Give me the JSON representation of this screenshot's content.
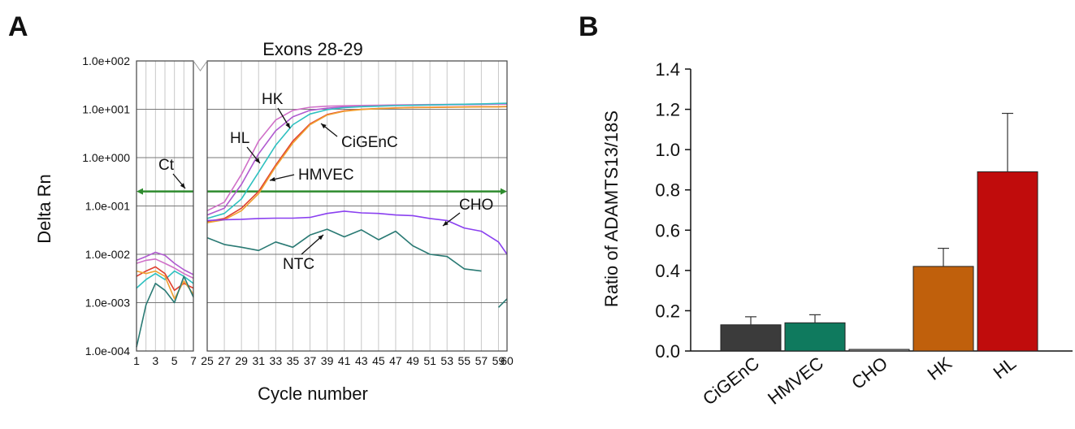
{
  "panel_a_letter": "A",
  "panel_b_letter": "B",
  "colors": {
    "HK": "#b05ad0",
    "HL": "#d070c8",
    "HMVEC": "#2ec0c0",
    "CiGEnC": "#e04030",
    "CiGEnC_b": "#f0a030",
    "CHO": "#8a40f0",
    "NTC": "#2a7a74",
    "threshold": "#2e8b2e",
    "bar_CiGEnC": "#3b3b3b",
    "bar_HMVEC": "#0f7a5e",
    "bar_CHO": "#9a9a9a",
    "bar_HK": "#c0600c",
    "bar_HL": "#c00c0c"
  },
  "chart_data": [
    {
      "type": "line",
      "title": "Exons 28-29",
      "xlabel": "Cycle number",
      "ylabel": "Delta Rn",
      "yscale": "log",
      "ylim": [
        0.0001,
        100
      ],
      "y_ticks": [
        "1.0e+002",
        "1.0e+001",
        "1.0e+000",
        "1.0e-001",
        "1.0e-002",
        "1.0e-003",
        "1.0e-004"
      ],
      "x_ticks_left": [
        "1",
        "3",
        "5",
        "7"
      ],
      "x_ticks_right": [
        "25",
        "27",
        "29",
        "31",
        "33",
        "35",
        "37",
        "39",
        "41",
        "43",
        "45",
        "47",
        "49",
        "51",
        "53",
        "55",
        "57",
        "59",
        "60"
      ],
      "axis_break": [
        7,
        25
      ],
      "grid": true,
      "threshold": {
        "label": "Ct",
        "value": 0.2
      },
      "annotations": [
        "HK",
        "HL",
        "CiGEnC",
        "HMVEC",
        "CHO",
        "NTC",
        "Ct"
      ],
      "series": [
        {
          "name": "HK",
          "color_key": "HK",
          "x": [
            1,
            2,
            3,
            4,
            5,
            6,
            7,
            25,
            27,
            29,
            31,
            33,
            35,
            37,
            39,
            41,
            43,
            45,
            47,
            49,
            51,
            53,
            55,
            57,
            59,
            60
          ],
          "y": [
            0.0075,
            0.009,
            0.011,
            0.0095,
            0.0065,
            0.0048,
            0.0038,
            0.065,
            0.09,
            0.28,
            1.2,
            3.6,
            7.0,
            9.5,
            10.5,
            11.2,
            11.5,
            11.8,
            12.0,
            12.2,
            12.3,
            12.4,
            12.5,
            12.6,
            12.8,
            12.8
          ]
        },
        {
          "name": "HL",
          "color_key": "HL",
          "x": [
            1,
            2,
            3,
            4,
            5,
            6,
            7,
            25,
            27,
            29,
            31,
            33,
            35,
            37,
            39,
            41,
            43,
            45,
            47,
            49,
            51,
            53,
            55,
            57,
            59,
            60
          ],
          "y": [
            0.0065,
            0.0075,
            0.008,
            0.0065,
            0.0052,
            0.004,
            0.0032,
            0.08,
            0.12,
            0.45,
            2.2,
            6.0,
            9.5,
            11.0,
            11.6,
            11.8,
            12.0,
            12.1,
            12.3,
            12.4,
            12.5,
            12.6,
            12.7,
            12.8,
            13.0,
            13.0
          ]
        },
        {
          "name": "HMVEC",
          "color_key": "HMVEC",
          "x": [
            1,
            2,
            3,
            4,
            5,
            6,
            7,
            25,
            27,
            29,
            31,
            33,
            35,
            37,
            39,
            41,
            43,
            45,
            47,
            49,
            51,
            53,
            55,
            57,
            59,
            60
          ],
          "y": [
            0.002,
            0.003,
            0.004,
            0.003,
            0.0045,
            0.0035,
            0.0025,
            0.055,
            0.07,
            0.14,
            0.5,
            1.8,
            4.8,
            8.0,
            9.8,
            10.8,
            11.3,
            11.6,
            11.9,
            12.1,
            12.3,
            12.5,
            12.7,
            12.9,
            13.2,
            13.3
          ]
        },
        {
          "name": "CiGEnC",
          "color_key": "CiGEnC",
          "x": [
            1,
            2,
            3,
            4,
            5,
            6,
            7,
            25,
            27,
            29,
            31,
            33,
            35,
            37,
            39,
            41,
            43,
            45,
            47,
            49,
            51,
            53,
            55,
            57,
            59,
            60
          ],
          "y": [
            0.0035,
            0.0045,
            0.0055,
            0.004,
            0.0018,
            0.0025,
            0.002,
            0.048,
            0.055,
            0.09,
            0.2,
            0.7,
            2.2,
            5.0,
            7.8,
            9.3,
            10.0,
            10.4,
            10.7,
            10.9,
            11.0,
            11.1,
            11.2,
            11.3,
            11.3,
            11.4
          ]
        },
        {
          "name": "CiGEnC",
          "color_key": "CiGEnC_b",
          "x": [
            1,
            2,
            3,
            4,
            5,
            6,
            7,
            25,
            27,
            29,
            31,
            33,
            35,
            37,
            39,
            41,
            43,
            45,
            47,
            49,
            51,
            53,
            55,
            57,
            59,
            60
          ],
          "y": [
            0.0045,
            0.004,
            0.0045,
            0.0035,
            0.0012,
            0.0028,
            0.0015,
            0.045,
            0.052,
            0.08,
            0.18,
            0.65,
            2.0,
            4.8,
            7.6,
            9.1,
            9.9,
            10.3,
            10.6,
            10.8,
            10.9,
            11.0,
            11.1,
            11.2,
            11.2,
            11.3
          ]
        },
        {
          "name": "CHO",
          "color_key": "CHO",
          "x": [
            25,
            27,
            29,
            31,
            33,
            35,
            37,
            39,
            41,
            43,
            45,
            47,
            49,
            51,
            53,
            55,
            57,
            59,
            60
          ],
          "y": [
            0.05,
            0.052,
            0.053,
            0.055,
            0.056,
            0.056,
            0.058,
            0.07,
            0.078,
            0.072,
            0.07,
            0.065,
            0.063,
            0.055,
            0.05,
            0.035,
            0.03,
            0.018,
            0.01
          ]
        },
        {
          "name": "NTC",
          "color_key": "NTC",
          "x": [
            1,
            2,
            3,
            4,
            5,
            6,
            7
          ],
          "y": [
            0.00012,
            0.0009,
            0.0025,
            0.0018,
            0.001,
            0.0035,
            0.0013
          ]
        },
        {
          "name": "NTC",
          "color_key": "NTC",
          "x": [
            25,
            27,
            29,
            31,
            33,
            35,
            37,
            39,
            41,
            43,
            45,
            47,
            49,
            51,
            53,
            55,
            57
          ],
          "y": [
            0.022,
            0.016,
            0.014,
            0.012,
            0.018,
            0.014,
            0.025,
            0.033,
            0.023,
            0.032,
            0.02,
            0.03,
            0.015,
            0.01,
            0.009,
            0.005,
            0.0045
          ]
        },
        {
          "name": "NTC",
          "color_key": "NTC",
          "x": [
            59,
            60
          ],
          "y": [
            0.0008,
            0.0012
          ]
        }
      ]
    },
    {
      "type": "bar",
      "ylabel": "Ratio of ADAMTS13/18S",
      "ylim": [
        0,
        1.4
      ],
      "y_ticks": [
        "0.0",
        "0.2",
        "0.4",
        "0.6",
        "0.8",
        "1.0",
        "1.2",
        "1.4"
      ],
      "categories": [
        "CiGEnC",
        "HMVEC",
        "CHO",
        "HK",
        "HL"
      ],
      "values": [
        0.13,
        0.14,
        0.008,
        0.42,
        0.89
      ],
      "errors": [
        0.04,
        0.04,
        0.0,
        0.09,
        0.29
      ],
      "bar_color_keys": [
        "bar_CiGEnC",
        "bar_HMVEC",
        "bar_CHO",
        "bar_HK",
        "bar_HL"
      ]
    }
  ]
}
